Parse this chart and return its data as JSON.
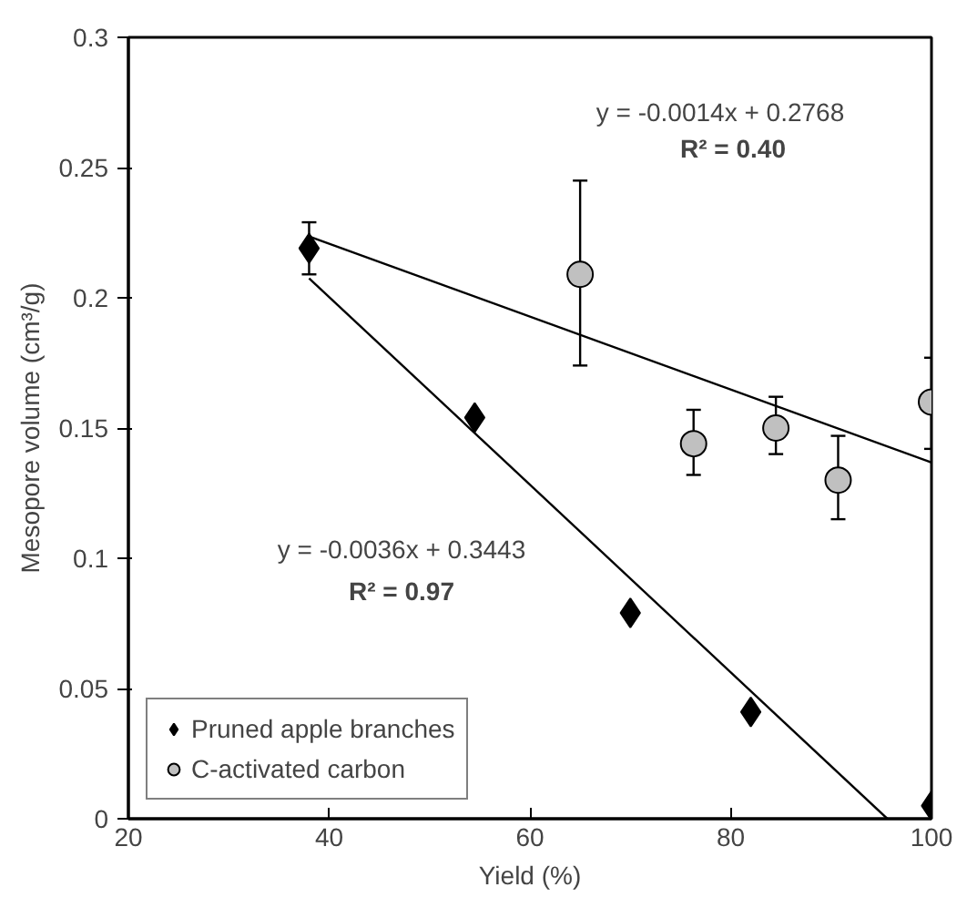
{
  "chart_data": {
    "type": "scatter",
    "xlabel": "Yield (%)",
    "ylabel": "Mesopore volume (cm³/g)",
    "xlim": [
      20,
      100
    ],
    "xticks": [
      20,
      40,
      60,
      80,
      100
    ],
    "ylim": [
      0,
      0.3
    ],
    "yticks": [
      0,
      0.05,
      0.1,
      0.15,
      0.2,
      0.25,
      0.3
    ],
    "grid": false,
    "legend": "bottom left",
    "series": [
      {
        "name": "Pruned apple branches",
        "color": "#000000",
        "marker": "diamond",
        "x": [
          38,
          54.5,
          70,
          82,
          100
        ],
        "values": [
          0.219,
          0.154,
          0.079,
          0.041,
          0.005
        ],
        "errors": [
          0.01,
          null,
          null,
          null,
          null
        ]
      },
      {
        "name": "C-activated carbon",
        "color": "#c0c0c0",
        "marker": "circle",
        "x": [
          65,
          76.3,
          84.5,
          90.7,
          100
        ],
        "values": [
          0.209,
          0.144,
          0.15,
          0.13,
          0.16
        ],
        "errors": [
          [
            0.174,
            0.245
          ],
          [
            0.132,
            0.157
          ],
          [
            0.14,
            0.162
          ],
          [
            0.115,
            0.147
          ],
          [
            0.142,
            0.177
          ]
        ]
      },
      {
        "type": "line",
        "color": "#000000",
        "x": [
          38,
          95.6
        ],
        "values": [
          0.2075,
          0
        ]
      },
      {
        "type": "line",
        "color": "#000000",
        "x": [
          38,
          100
        ],
        "values": [
          0.2236,
          0.1368
        ]
      }
    ],
    "annotations": [
      "y = -0.0014x + 0.2768",
      "R² = 0.40",
      "y = -0.0036x + 0.3443",
      "R² = 0.97"
    ]
  }
}
